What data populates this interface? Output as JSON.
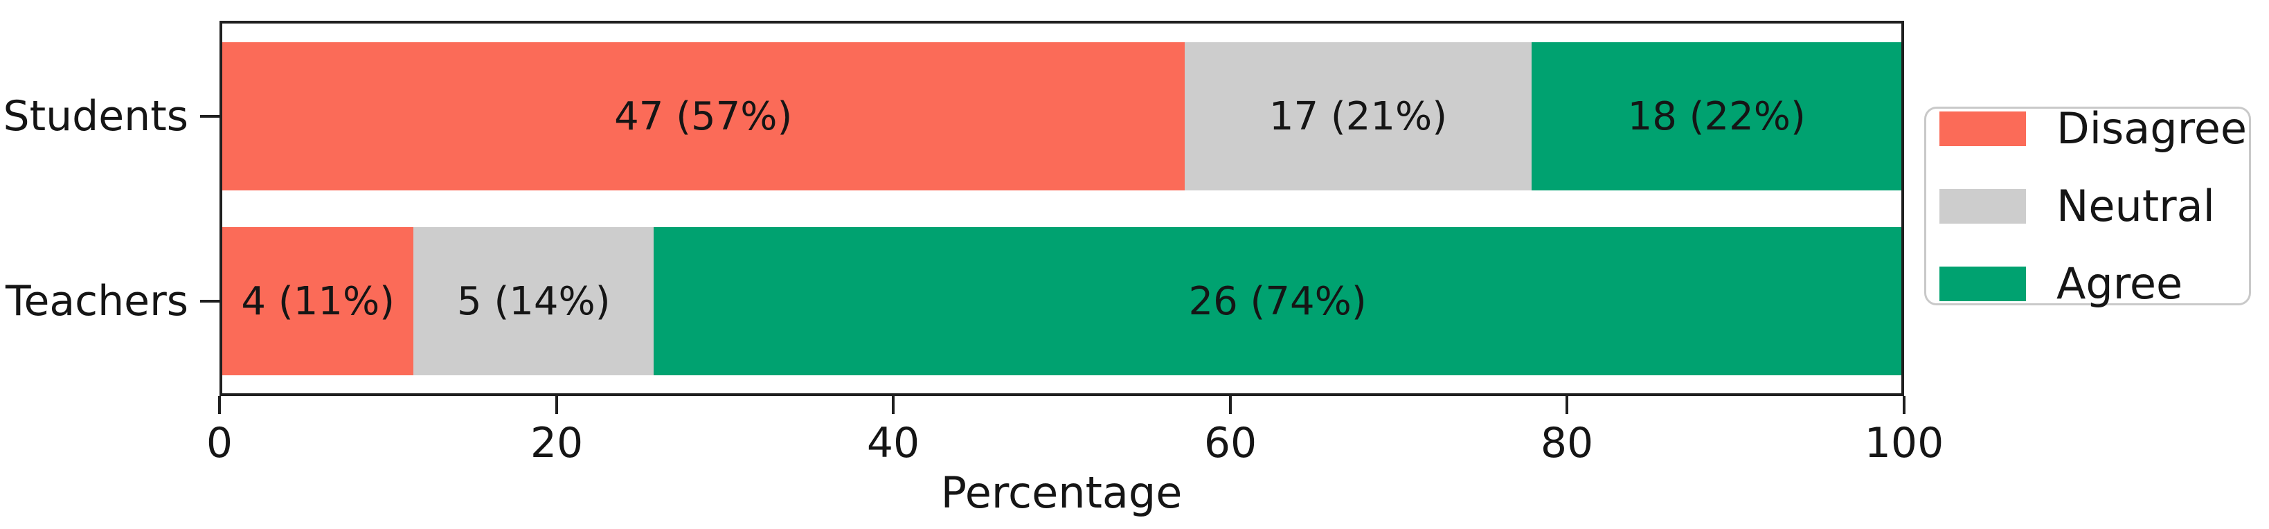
{
  "chart_data": {
    "type": "bar",
    "orientation": "horizontal",
    "stacked": true,
    "title": "",
    "xlabel": "Percentage",
    "ylabel": "",
    "xlim": [
      0,
      100
    ],
    "x_ticks": [
      0,
      20,
      40,
      60,
      80,
      100
    ],
    "grid": false,
    "legend_position": "right-outside",
    "categories": [
      "Students",
      "Teachers"
    ],
    "series": [
      {
        "name": "Disagree",
        "color": "#FB6B58",
        "counts": [
          47,
          4
        ],
        "percents": [
          57,
          11
        ]
      },
      {
        "name": "Neutral",
        "color": "#CDCDCD",
        "counts": [
          17,
          5
        ],
        "percents": [
          21,
          14
        ]
      },
      {
        "name": "Agree",
        "color": "#00A270",
        "counts": [
          18,
          26
        ],
        "percents": [
          22,
          74
        ]
      }
    ],
    "rows": [
      {
        "category": "Students",
        "segments": [
          {
            "series": "Disagree",
            "count": 47,
            "pct": 57.3,
            "label": "47 (57%)"
          },
          {
            "series": "Neutral",
            "count": 17,
            "pct": 20.7,
            "label": "17 (21%)"
          },
          {
            "series": "Agree",
            "count": 18,
            "pct": 22.0,
            "label": "18 (22%)"
          }
        ]
      },
      {
        "category": "Teachers",
        "segments": [
          {
            "series": "Disagree",
            "count": 4,
            "pct": 11.4,
            "label": "4 (11%)"
          },
          {
            "series": "Neutral",
            "count": 5,
            "pct": 14.3,
            "label": "5 (14%)"
          },
          {
            "series": "Agree",
            "count": 26,
            "pct": 74.3,
            "label": "26 (74%)"
          }
        ]
      }
    ],
    "legend_entries": [
      "Disagree",
      "Neutral",
      "Agree"
    ]
  }
}
